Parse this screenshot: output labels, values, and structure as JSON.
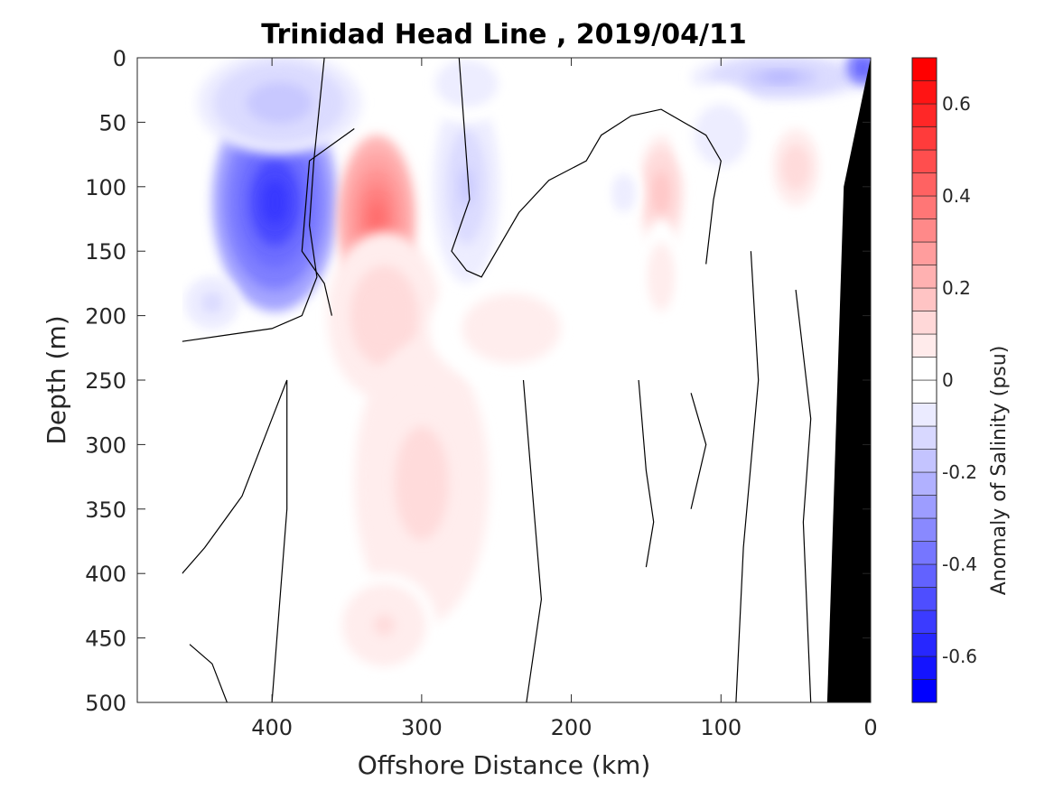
{
  "chart_data": {
    "type": "heatmap",
    "title": "Trinidad Head Line , 2019/04/11",
    "xlabel": "Offshore Distance (km)",
    "ylabel": "Depth (m)",
    "xlim": [
      490,
      0
    ],
    "ylim": [
      0,
      500
    ],
    "x_reversed": true,
    "y_reversed": true,
    "x_ticks": [
      400,
      300,
      200,
      100,
      0
    ],
    "y_ticks": [
      0,
      50,
      100,
      150,
      200,
      250,
      300,
      350,
      400,
      450,
      500
    ],
    "colorbar": {
      "label": "Anomaly of Salinity (psu)",
      "range": [
        -0.7,
        0.7
      ],
      "step": 0.05,
      "tick_values": [
        -0.6,
        -0.4,
        -0.2,
        0,
        0.2,
        0.4,
        0.6
      ],
      "tick_labels": [
        "-0.6",
        "-0.4",
        "-0.2",
        "0",
        "0.2",
        "0.4",
        "0.6"
      ],
      "colors": {
        "negative": "#0000ff",
        "zero": "#ffffff",
        "positive": "#ff0000"
      }
    },
    "grid": false,
    "data_extent_x": [
      460,
      0
    ],
    "bathymetry": {
      "description_none": "",
      "points": [
        [
          0,
          0
        ],
        [
          0,
          500
        ],
        [
          29,
          500
        ],
        [
          18,
          100
        ]
      ],
      "color": "#000000"
    },
    "anomaly_features": [
      {
        "x": 398,
        "depth": 112,
        "rx": 42,
        "rdepth": 85,
        "value": -0.6
      },
      {
        "x": 395,
        "depth": 35,
        "rx": 55,
        "rdepth": 40,
        "value": -0.18
      },
      {
        "x": 440,
        "depth": 190,
        "rx": 18,
        "rdepth": 20,
        "value": -0.12
      },
      {
        "x": 330,
        "depth": 125,
        "rx": 26,
        "rdepth": 65,
        "value": 0.42
      },
      {
        "x": 325,
        "depth": 200,
        "rx": 38,
        "rdepth": 65,
        "value": 0.15
      },
      {
        "x": 300,
        "depth": 330,
        "rx": 45,
        "rdepth": 110,
        "value": 0.12
      },
      {
        "x": 325,
        "depth": 440,
        "rx": 35,
        "rdepth": 40,
        "value": 0.1
      },
      {
        "x": 240,
        "depth": 210,
        "rx": 55,
        "rdepth": 45,
        "value": 0.07
      },
      {
        "x": 270,
        "depth": 100,
        "rx": 22,
        "rdepth": 75,
        "value": -0.16
      },
      {
        "x": 270,
        "depth": 20,
        "rx": 35,
        "rdepth": 30,
        "value": -0.08
      },
      {
        "x": 140,
        "depth": 105,
        "rx": 15,
        "rdepth": 45,
        "value": 0.18
      },
      {
        "x": 140,
        "depth": 170,
        "rx": 14,
        "rdepth": 45,
        "value": 0.08
      },
      {
        "x": 165,
        "depth": 105,
        "rx": 12,
        "rdepth": 25,
        "value": -0.08
      },
      {
        "x": 50,
        "depth": 85,
        "rx": 15,
        "rdepth": 30,
        "value": 0.14
      },
      {
        "x": 60,
        "depth": 15,
        "rx": 60,
        "rdepth": 18,
        "value": -0.2
      },
      {
        "x": 5,
        "depth": 8,
        "rx": 12,
        "rdepth": 14,
        "value": -0.5
      },
      {
        "x": 100,
        "depth": 60,
        "rx": 30,
        "rdepth": 40,
        "value": -0.08
      }
    ],
    "zero_contours": [
      [
        [
          460,
          220
        ],
        [
          430,
          215
        ],
        [
          400,
          210
        ],
        [
          380,
          200
        ],
        [
          370,
          170
        ],
        [
          375,
          130
        ],
        [
          372,
          80
        ],
        [
          365,
          0
        ]
      ],
      [
        [
          345,
          55
        ],
        [
          375,
          80
        ],
        [
          380,
          150
        ],
        [
          365,
          175
        ],
        [
          360,
          200
        ]
      ],
      [
        [
          275,
          0
        ],
        [
          268,
          110
        ],
        [
          280,
          150
        ],
        [
          270,
          165
        ],
        [
          260,
          170
        ],
        [
          245,
          140
        ],
        [
          235,
          120
        ],
        [
          215,
          95
        ],
        [
          190,
          80
        ],
        [
          180,
          60
        ],
        [
          160,
          45
        ],
        [
          140,
          40
        ],
        [
          110,
          60
        ],
        [
          100,
          80
        ],
        [
          105,
          110
        ],
        [
          110,
          160
        ]
      ],
      [
        [
          232,
          250
        ],
        [
          225,
          350
        ],
        [
          220,
          420
        ],
        [
          230,
          500
        ]
      ],
      [
        [
          430,
          500
        ],
        [
          440,
          470
        ],
        [
          455,
          455
        ]
      ],
      [
        [
          460,
          400
        ],
        [
          445,
          380
        ],
        [
          420,
          340
        ],
        [
          400,
          280
        ],
        [
          390,
          250
        ],
        [
          390,
          350
        ],
        [
          400,
          500
        ]
      ],
      [
        [
          80,
          150
        ],
        [
          75,
          250
        ],
        [
          85,
          380
        ],
        [
          90,
          500
        ]
      ],
      [
        [
          50,
          180
        ],
        [
          40,
          280
        ],
        [
          45,
          360
        ],
        [
          40,
          500
        ]
      ],
      [
        [
          155,
          250
        ],
        [
          150,
          320
        ],
        [
          145,
          360
        ],
        [
          150,
          395
        ]
      ],
      [
        [
          120,
          260
        ],
        [
          110,
          300
        ],
        [
          120,
          350
        ]
      ]
    ]
  }
}
